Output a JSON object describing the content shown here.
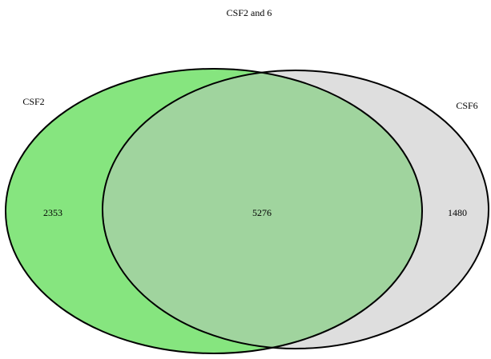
{
  "chart_data": {
    "type": "venn",
    "title": "CSF2 and 6",
    "sets": [
      {
        "name": "CSF2",
        "color": "#86e57f"
      },
      {
        "name": "CSF6",
        "color": "#dedede"
      }
    ],
    "values": [
      2353,
      5276,
      1480
    ],
    "overlap_color": "#a0d49e"
  }
}
